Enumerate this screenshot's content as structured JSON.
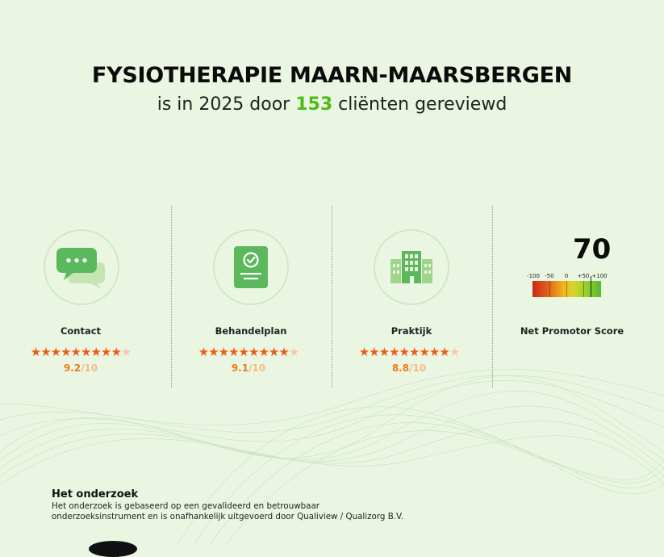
{
  "header": {
    "title": "FYSIOTHERAPIE MAARN-MAARSBERGEN",
    "subtitle_prefix": "is in 2025 door",
    "client_count": "153",
    "subtitle_suffix": "cliënten gereviewd"
  },
  "categories": [
    {
      "label": "Contact",
      "icon": "chat-bubbles-icon",
      "score": "9.2",
      "denominator": "/10",
      "stars_filled": 9,
      "stars_total": 10
    },
    {
      "label": "Behandelplan",
      "icon": "clipboard-check-icon",
      "score": "9.1",
      "denominator": "/10",
      "stars_filled": 9,
      "stars_total": 10
    },
    {
      "label": "Praktijk",
      "icon": "buildings-icon",
      "score": "8.8",
      "denominator": "/10",
      "stars_filled": 9,
      "stars_total": 10
    }
  ],
  "nps": {
    "value": "70",
    "label": "Net Promotor Score",
    "ticks": [
      "-100",
      "-50",
      "0",
      "+50",
      "+100"
    ],
    "scale_min": -100,
    "scale_max": 100
  },
  "research": {
    "title": "Het onderzoek",
    "line1": "Het onderzoek is gebaseerd op een gevalideerd en betrouwbaar",
    "line2": "onderzoeksinstrument en is onafhankelijk uitgevoerd door Qualiview / Qualizorg B.V."
  },
  "colors": {
    "background": "#eaf6e2",
    "accent_green": "#4cbb17",
    "star_orange": "#f05a14",
    "icon_green": "#5cb85c"
  }
}
